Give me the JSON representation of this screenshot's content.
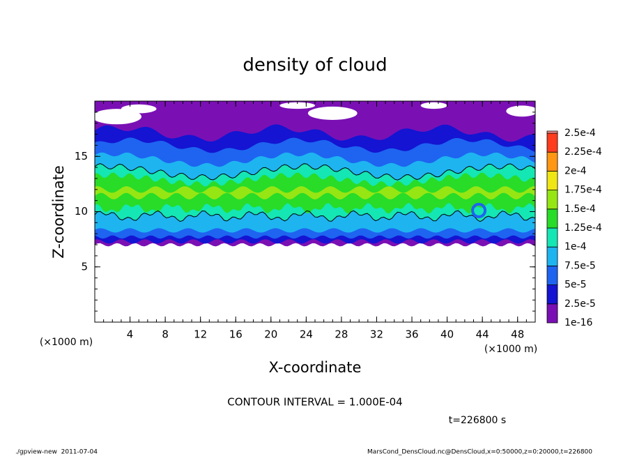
{
  "chart_data": {
    "type": "contour",
    "title": "density of cloud",
    "x_label": "X-coordinate",
    "y_label": "Z-coordinate",
    "x_unit": "(×1000 m)",
    "y_unit": "(×1000 m)",
    "xlim": [
      0,
      50
    ],
    "ylim": [
      0,
      20
    ],
    "xticks": [
      4,
      8,
      12,
      16,
      20,
      24,
      28,
      32,
      36,
      40,
      44,
      48
    ],
    "yticks": [
      5,
      10,
      15
    ],
    "minor_tick_step": 1,
    "colorbar": {
      "levels": [
        {
          "value": 1e-16,
          "label": "1e-16"
        },
        {
          "value": 2.5e-05,
          "label": "2.5e-5"
        },
        {
          "value": 5e-05,
          "label": "5e-5"
        },
        {
          "value": 7.5e-05,
          "label": "7.5e-5"
        },
        {
          "value": 0.0001,
          "label": "1e-4"
        },
        {
          "value": 0.000125,
          "label": "1.25e-4"
        },
        {
          "value": 0.00015,
          "label": "1.5e-4"
        },
        {
          "value": 0.000175,
          "label": "1.75e-4"
        },
        {
          "value": 0.0002,
          "label": "2e-4"
        },
        {
          "value": 0.000225,
          "label": "2.25e-4"
        },
        {
          "value": 0.00025,
          "label": "2.5e-4"
        }
      ],
      "colors": [
        "#7a10b4",
        "#1414d2",
        "#1e64f0",
        "#1eb4f0",
        "#14e6b4",
        "#28dc28",
        "#96e614",
        "#f0e614",
        "#ff9614",
        "#ff3c1e",
        "#ff9696"
      ]
    },
    "contour_note": "CONTOUR INTERVAL = 1.000E-04",
    "time_label": "t=226800 s",
    "footer_left": "./gpview-new  2011-07-04",
    "footer_right": "MarsCond_DensCloud.nc@DensCloud,x=0:50000,z=0:20000,t=226800"
  }
}
